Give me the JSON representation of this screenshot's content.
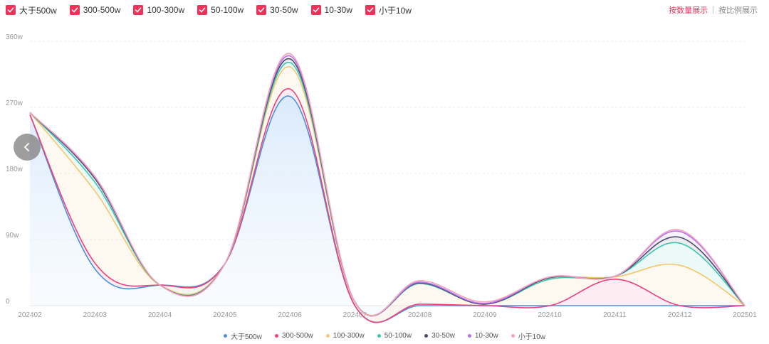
{
  "filters": [
    {
      "label": "大于500w",
      "checked": true
    },
    {
      "label": "300-500w",
      "checked": true
    },
    {
      "label": "100-300w",
      "checked": true
    },
    {
      "label": "50-100w",
      "checked": true
    },
    {
      "label": "30-50w",
      "checked": true
    },
    {
      "label": "10-30w",
      "checked": true
    },
    {
      "label": "小于10w",
      "checked": true
    }
  ],
  "modes": {
    "by_count": "按数量展示",
    "separator": "|",
    "by_ratio": "按比例展示"
  },
  "icons": {
    "checkbox": "check-icon",
    "prev": "chevron-left-icon"
  },
  "accent_color": "#f0325a",
  "chart_data": {
    "type": "area",
    "stacked": true,
    "smooth": true,
    "x": [
      "202402",
      "202403",
      "202404",
      "202405",
      "202406",
      "202407",
      "202408",
      "202409",
      "202410",
      "202411",
      "202412",
      "202501"
    ],
    "y_ticks": [
      "0",
      "90w",
      "180w",
      "270w",
      "360w"
    ],
    "ylim": [
      0,
      360
    ],
    "unit": "w",
    "grid": true,
    "legend_position": "bottom",
    "series": [
      {
        "name": "大于500w",
        "color": "#4a90e2",
        "values": [
          260,
          50,
          28,
          57,
          285,
          0,
          0,
          0,
          0,
          0,
          0,
          0
        ]
      },
      {
        "name": "300-500w",
        "color": "#f0407a",
        "values": [
          0,
          8,
          0,
          0,
          10,
          0,
          2,
          0,
          0,
          36,
          0,
          0
        ]
      },
      {
        "name": "100-300w",
        "color": "#f5c66b",
        "values": [
          3,
          98,
          0,
          0,
          30,
          5,
          28,
          2,
          36,
          3,
          55,
          0
        ]
      },
      {
        "name": "50-100w",
        "color": "#3cc7b0",
        "values": [
          0,
          12,
          0,
          0,
          6,
          0,
          0,
          0,
          0,
          1,
          30,
          0
        ]
      },
      {
        "name": "30-50w",
        "color": "#4a4a6a",
        "values": [
          0,
          5,
          0,
          0,
          5,
          0,
          1,
          0,
          2,
          0,
          8,
          0
        ]
      },
      {
        "name": "10-30w",
        "color": "#b26ef7",
        "values": [
          0,
          2,
          0,
          0,
          4,
          0,
          1,
          1,
          1,
          0,
          8,
          0
        ]
      },
      {
        "name": "小于10w",
        "color": "#f4a2b5",
        "values": [
          0,
          1,
          0,
          0,
          3,
          0,
          2,
          2,
          0,
          0,
          2,
          0
        ]
      }
    ]
  }
}
